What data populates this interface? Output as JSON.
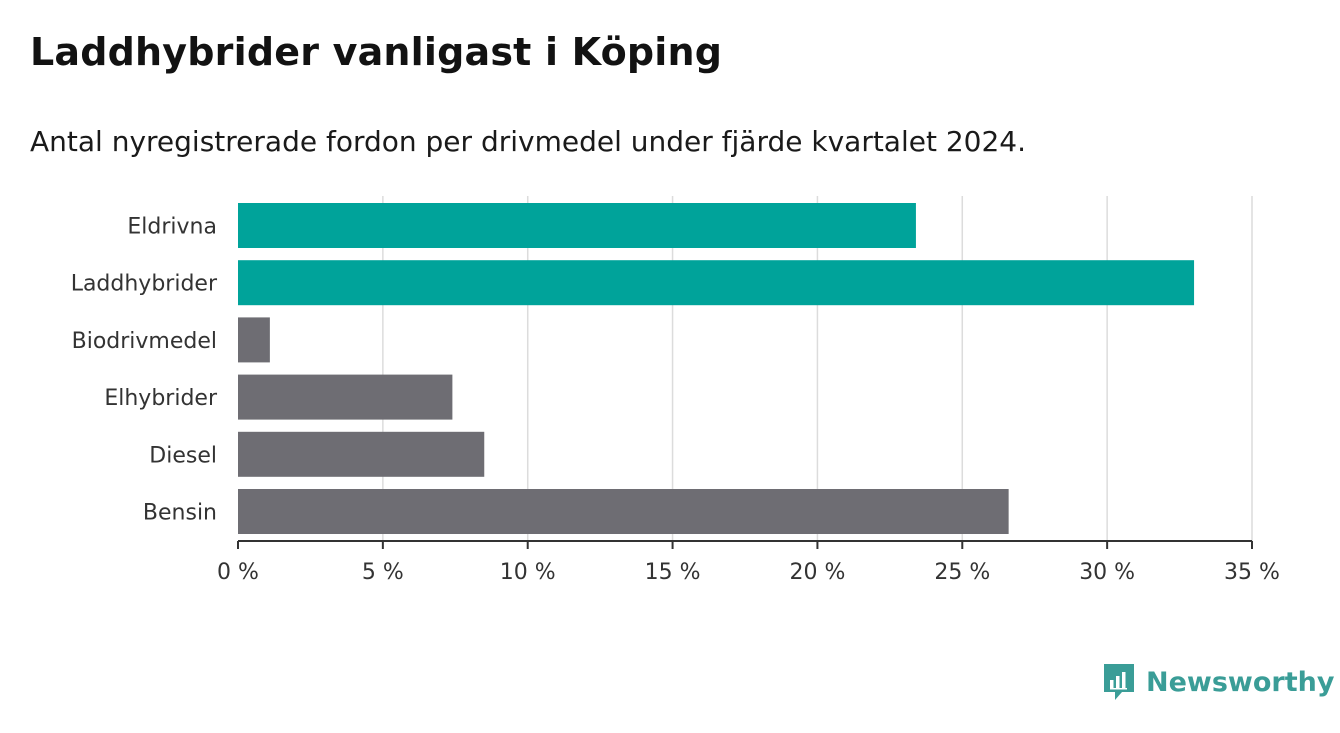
{
  "title": "Laddhybrider vanligast i Köping",
  "subtitle": "Antal nyregistrerade fordon per drivmedel under fjärde kvartalet 2024.",
  "brand": {
    "name": "Newsworthy",
    "icon": "bar-chart-speech-icon",
    "color": "#3a9d97"
  },
  "chart_data": {
    "type": "bar",
    "orientation": "horizontal",
    "categories": [
      "Eldrivna",
      "Laddhybrider",
      "Biodrivmedel",
      "Elhybrider",
      "Diesel",
      "Bensin"
    ],
    "values": [
      23.4,
      33.0,
      1.1,
      7.4,
      8.5,
      26.6
    ],
    "colors": [
      "#00a39a",
      "#00a39a",
      "#6e6d73",
      "#6e6d73",
      "#6e6d73",
      "#6e6d73"
    ],
    "xlim": [
      0,
      35
    ],
    "xticks": [
      0,
      5,
      10,
      15,
      20,
      25,
      30,
      35
    ],
    "xtick_labels": [
      "0 %",
      "5 %",
      "10 %",
      "15 %",
      "20 %",
      "25 %",
      "30 %",
      "35 %"
    ],
    "grid": true,
    "title": "Laddhybrider vanligast i Köping",
    "xlabel": "",
    "ylabel": ""
  }
}
